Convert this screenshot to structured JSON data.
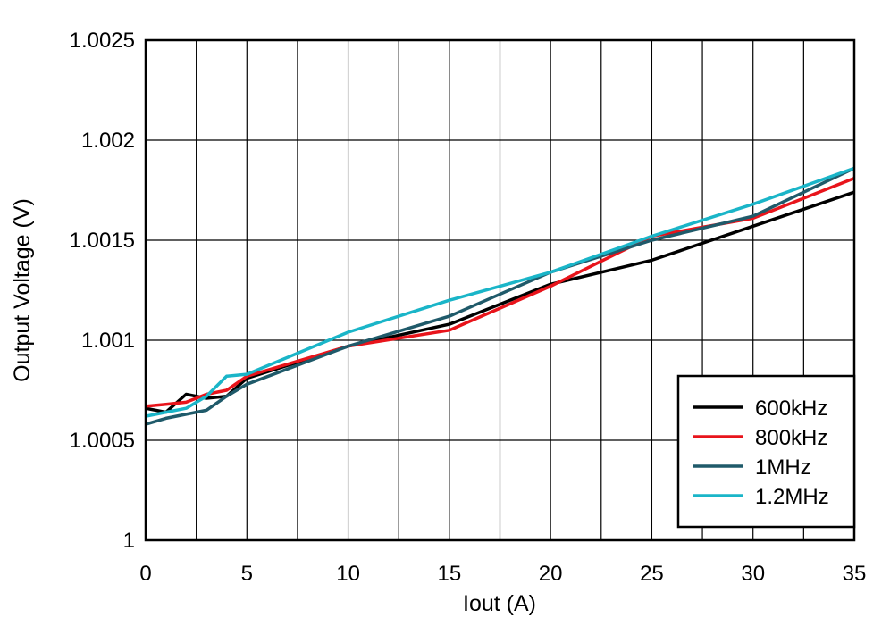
{
  "chart_data": {
    "type": "line",
    "title": "",
    "xlabel": "Iout (A)",
    "ylabel": "Output Voltage (V)",
    "xlim": [
      0,
      35
    ],
    "ylim": [
      1,
      1.0025
    ],
    "grid": true,
    "x_ticks": [
      0,
      2.5,
      5,
      7.5,
      10,
      12.5,
      15,
      17.5,
      20,
      22.5,
      25,
      27.5,
      30,
      32.5,
      35
    ],
    "x_tick_labels": [
      "0",
      "5",
      "10",
      "15",
      "20",
      "25",
      "30",
      "35"
    ],
    "x_tick_label_values": [
      0,
      5,
      10,
      15,
      20,
      25,
      30,
      35
    ],
    "y_ticks": [
      1,
      1.0005,
      1.001,
      1.0015,
      1.002,
      1.0025
    ],
    "y_tick_labels": [
      "1",
      "1.0005",
      "1.001",
      "1.0015",
      "1.002",
      "1.0025"
    ],
    "legend_position": "bottom-right",
    "series": [
      {
        "name": "600kHz",
        "color": "#000000",
        "x": [
          0,
          1,
          2,
          3,
          4,
          5,
          10,
          15,
          20,
          25,
          30,
          35
        ],
        "y": [
          1.00066,
          1.00064,
          1.00073,
          1.00071,
          1.00072,
          1.00081,
          1.00097,
          1.00108,
          1.00128,
          1.0014,
          1.00157,
          1.00174
        ]
      },
      {
        "name": "800kHz",
        "color": "#e8141b",
        "x": [
          0,
          1,
          2,
          3,
          4,
          5,
          10,
          15,
          20,
          25,
          30,
          35
        ],
        "y": [
          1.00067,
          1.00068,
          1.00069,
          1.00073,
          1.00075,
          1.00082,
          1.00097,
          1.00105,
          1.00127,
          1.00152,
          1.00161,
          1.00181
        ]
      },
      {
        "name": "1MHz",
        "color": "#1f5a6a",
        "x": [
          0,
          1,
          2,
          3,
          4,
          5,
          10,
          15,
          20,
          25,
          30,
          35
        ],
        "y": [
          1.00058,
          1.00061,
          1.00063,
          1.00065,
          1.00072,
          1.00078,
          1.00097,
          1.00112,
          1.00134,
          1.0015,
          1.00162,
          1.00186
        ]
      },
      {
        "name": "1.2MHz",
        "color": "#1ab5c8",
        "x": [
          0,
          1,
          2,
          3,
          4,
          5,
          10,
          15,
          20,
          25,
          30,
          35
        ],
        "y": [
          1.00062,
          1.00064,
          1.00066,
          1.00072,
          1.00082,
          1.00083,
          1.00104,
          1.0012,
          1.00134,
          1.00152,
          1.00168,
          1.00186
        ]
      }
    ]
  }
}
